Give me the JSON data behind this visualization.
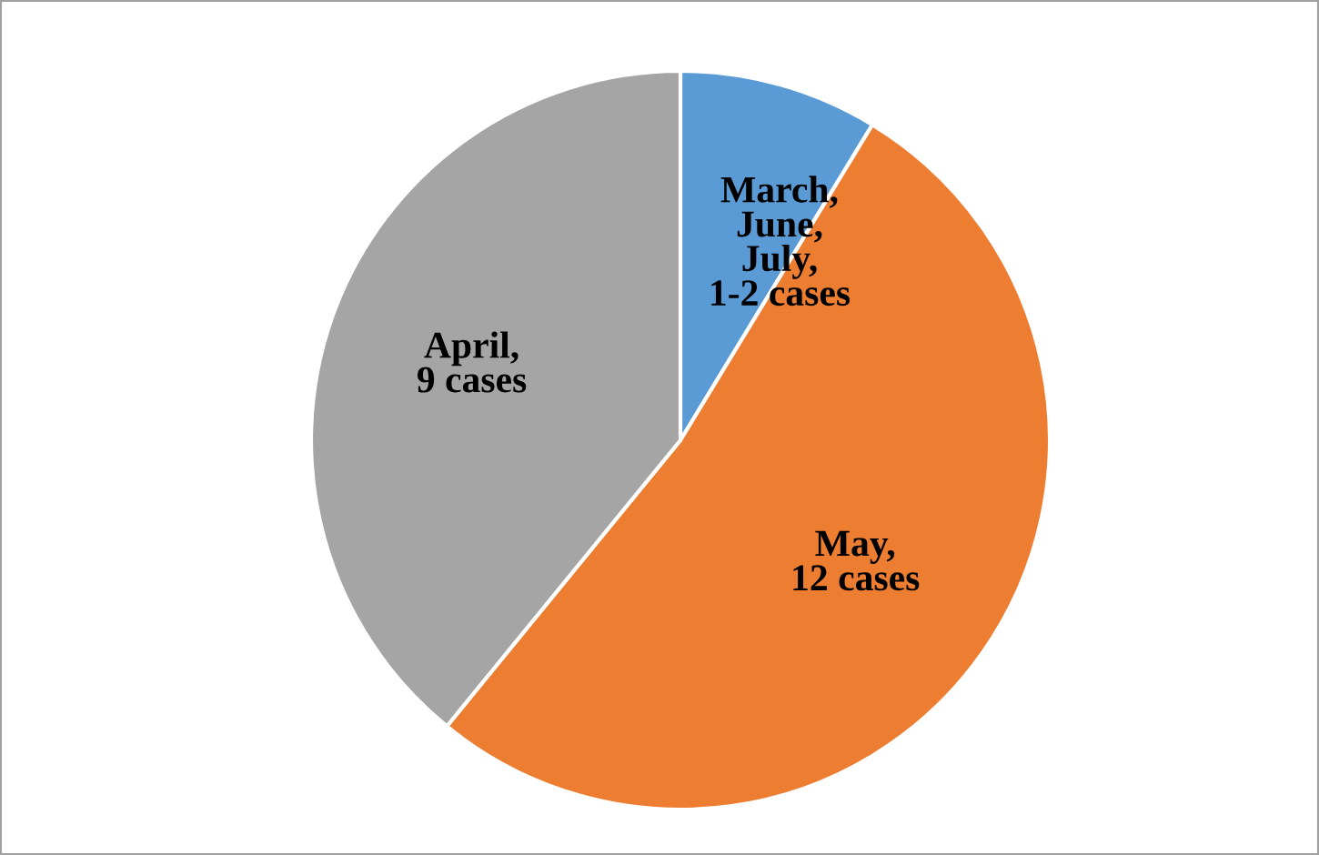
{
  "chart_data": {
    "type": "pie",
    "categories": [
      "March,\nJune,\nJuly,\n1-2 cases",
      "May,\n12 cases",
      "April,\n9 cases"
    ],
    "values": [
      8.7,
      52.2,
      39.1
    ],
    "colors": [
      "#5b9bd5",
      "#ed7d31",
      "#a5a5a5"
    ]
  }
}
